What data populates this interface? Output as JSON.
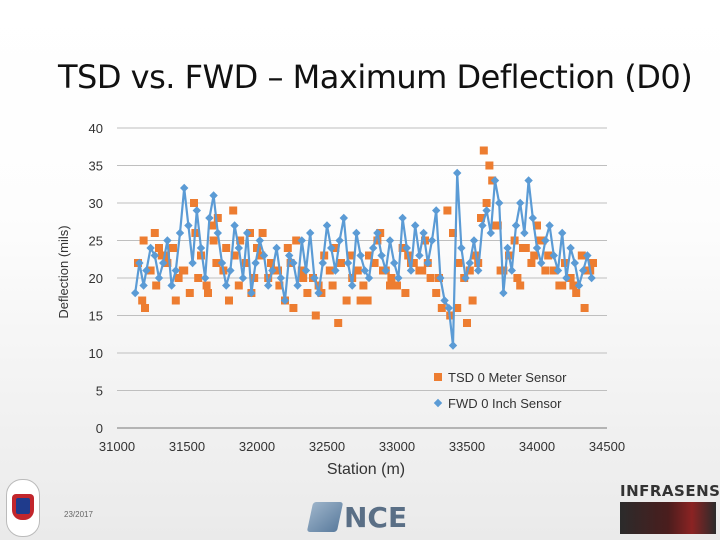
{
  "slide": {
    "title": "TSD vs. FWD – Maximum Deflection (D0)",
    "footer_date": "23/2017"
  },
  "logos": {
    "left": "idaho-transportation-logo",
    "center_text": "NCE",
    "right_text": "INFRASENSE"
  },
  "chart_data": {
    "type": "scatter",
    "title": "",
    "xlabel": "Station (m)",
    "ylabel": "Deflection (mils)",
    "xlim": [
      31000,
      34500
    ],
    "ylim": [
      0,
      40
    ],
    "x_ticks": [
      "31000",
      "31500",
      "32000",
      "32500",
      "33000",
      "33500",
      "34000",
      "34500"
    ],
    "y_ticks": [
      "0",
      "5",
      "10",
      "15",
      "20",
      "25",
      "30",
      "35",
      "40"
    ],
    "grid": "horizontal",
    "legend_position": "bottom-right",
    "series": [
      {
        "name": "TSD 0 Meter Sensor",
        "marker": "square",
        "color": "#ED7D31",
        "connected": false,
        "x": [
          31150,
          31190,
          31240,
          31280,
          31320,
          31360,
          31400,
          31440,
          31480,
          31520,
          31560,
          31600,
          31640,
          31680,
          31720,
          31760,
          31800,
          31840,
          31880,
          31920,
          31960,
          32000,
          32040,
          32080,
          32120,
          32160,
          32200,
          32240,
          32280,
          32320,
          32360,
          32400,
          32440,
          32480,
          32520,
          32560,
          32600,
          32640,
          32680,
          32720,
          32760,
          32800,
          32840,
          32880,
          32920,
          32960,
          33000,
          33040,
          33080,
          33120,
          33160,
          33200,
          33240,
          33280,
          33320,
          33360,
          33400,
          33440,
          33480,
          33520,
          33560,
          33600,
          33640,
          33680,
          33720,
          33760,
          33800,
          33840,
          33880,
          33920,
          33960,
          34000,
          34040,
          34080,
          34120,
          34160,
          34200,
          34240,
          34280,
          34320,
          34360,
          34400,
          31200,
          31300,
          31420,
          31550,
          31690,
          31830,
          31980,
          32100,
          32260,
          32420,
          32580,
          32740,
          32900,
          33060,
          33220,
          33380,
          33540,
          33620,
          33660,
          33700,
          33860,
          34020,
          34180,
          34340,
          31180,
          31270,
          31350,
          31470,
          31580,
          31650,
          31710,
          31780,
          31870,
          31950,
          32030,
          32150,
          32220,
          32330,
          32460,
          32540,
          32670,
          32790,
          32860,
          32950,
          33100,
          33180,
          33300,
          33430,
          33500,
          33580,
          33740,
          33900,
          33980,
          34060,
          34260,
          34380
        ],
        "y": [
          22,
          25,
          21,
          19,
          23,
          22,
          24,
          20,
          21,
          18,
          26,
          23,
          19,
          27,
          28,
          21,
          17,
          23,
          25,
          22,
          18,
          24,
          26,
          20,
          21,
          19,
          17,
          22,
          25,
          21,
          18,
          20,
          19,
          23,
          21,
          24,
          22,
          17,
          20,
          21,
          19,
          23,
          22,
          26,
          21,
          20,
          19,
          24,
          23,
          22,
          21,
          25,
          20,
          18,
          16,
          29,
          26,
          22,
          20,
          21,
          23,
          28,
          30,
          33,
          27,
          21,
          23,
          25,
          19,
          24,
          22,
          27,
          25,
          23,
          21,
          19,
          22,
          20,
          18,
          23,
          21,
          22,
          16,
          24,
          17,
          30,
          25,
          29,
          20,
          22,
          16,
          15,
          14,
          17,
          21,
          18,
          22,
          15,
          17,
          37,
          35,
          27,
          20,
          25,
          19,
          16,
          17,
          26,
          23,
          21,
          20,
          18,
          22,
          24,
          19,
          26,
          23,
          21,
          24,
          20,
          18,
          19,
          23,
          17,
          25,
          19,
          22,
          21,
          20,
          16,
          14,
          22,
          21,
          24,
          23,
          21,
          19,
          21
        ]
      },
      {
        "name": "FWD 0 Inch Sensor",
        "marker": "diamond",
        "color": "#5B9BD5",
        "connected": true,
        "x": [
          31130,
          31160,
          31190,
          31210,
          31240,
          31270,
          31300,
          31330,
          31360,
          31390,
          31420,
          31450,
          31480,
          31510,
          31540,
          31570,
          31600,
          31630,
          31660,
          31690,
          31720,
          31750,
          31780,
          31810,
          31840,
          31870,
          31900,
          31930,
          31960,
          31990,
          32020,
          32050,
          32080,
          32110,
          32140,
          32170,
          32200,
          32230,
          32260,
          32290,
          32320,
          32350,
          32380,
          32410,
          32440,
          32470,
          32500,
          32530,
          32560,
          32590,
          32620,
          32650,
          32680,
          32710,
          32740,
          32770,
          32800,
          32830,
          32860,
          32890,
          32920,
          32950,
          32980,
          33010,
          33040,
          33070,
          33100,
          33130,
          33160,
          33190,
          33220,
          33250,
          33280,
          33310,
          33340,
          33370,
          33400,
          33430,
          33460,
          33490,
          33520,
          33550,
          33580,
          33610,
          33640,
          33670,
          33700,
          33730,
          33760,
          33790,
          33820,
          33850,
          33880,
          33910,
          33940,
          33970,
          34000,
          34030,
          34060,
          34090,
          34120,
          34150,
          34180,
          34210,
          34240,
          34270,
          34300,
          34330,
          34360,
          34390
        ],
        "y": [
          18,
          22,
          19,
          21,
          24,
          23,
          20,
          22,
          25,
          19,
          21,
          26,
          32,
          27,
          22,
          29,
          24,
          20,
          28,
          31,
          26,
          22,
          19,
          21,
          27,
          24,
          20,
          26,
          18,
          22,
          25,
          23,
          19,
          21,
          24,
          20,
          17,
          23,
          22,
          19,
          25,
          21,
          26,
          20,
          18,
          22,
          27,
          24,
          21,
          25,
          28,
          22,
          19,
          26,
          23,
          21,
          20,
          24,
          26,
          23,
          21,
          25,
          22,
          20,
          28,
          24,
          21,
          27,
          23,
          26,
          22,
          25,
          29,
          20,
          17,
          16,
          11,
          34,
          24,
          20,
          22,
          25,
          21,
          27,
          29,
          26,
          33,
          30,
          18,
          24,
          21,
          27,
          30,
          26,
          33,
          28,
          24,
          22,
          25,
          27,
          23,
          21,
          26,
          20,
          24,
          22,
          19,
          21,
          23,
          20
        ]
      }
    ]
  }
}
